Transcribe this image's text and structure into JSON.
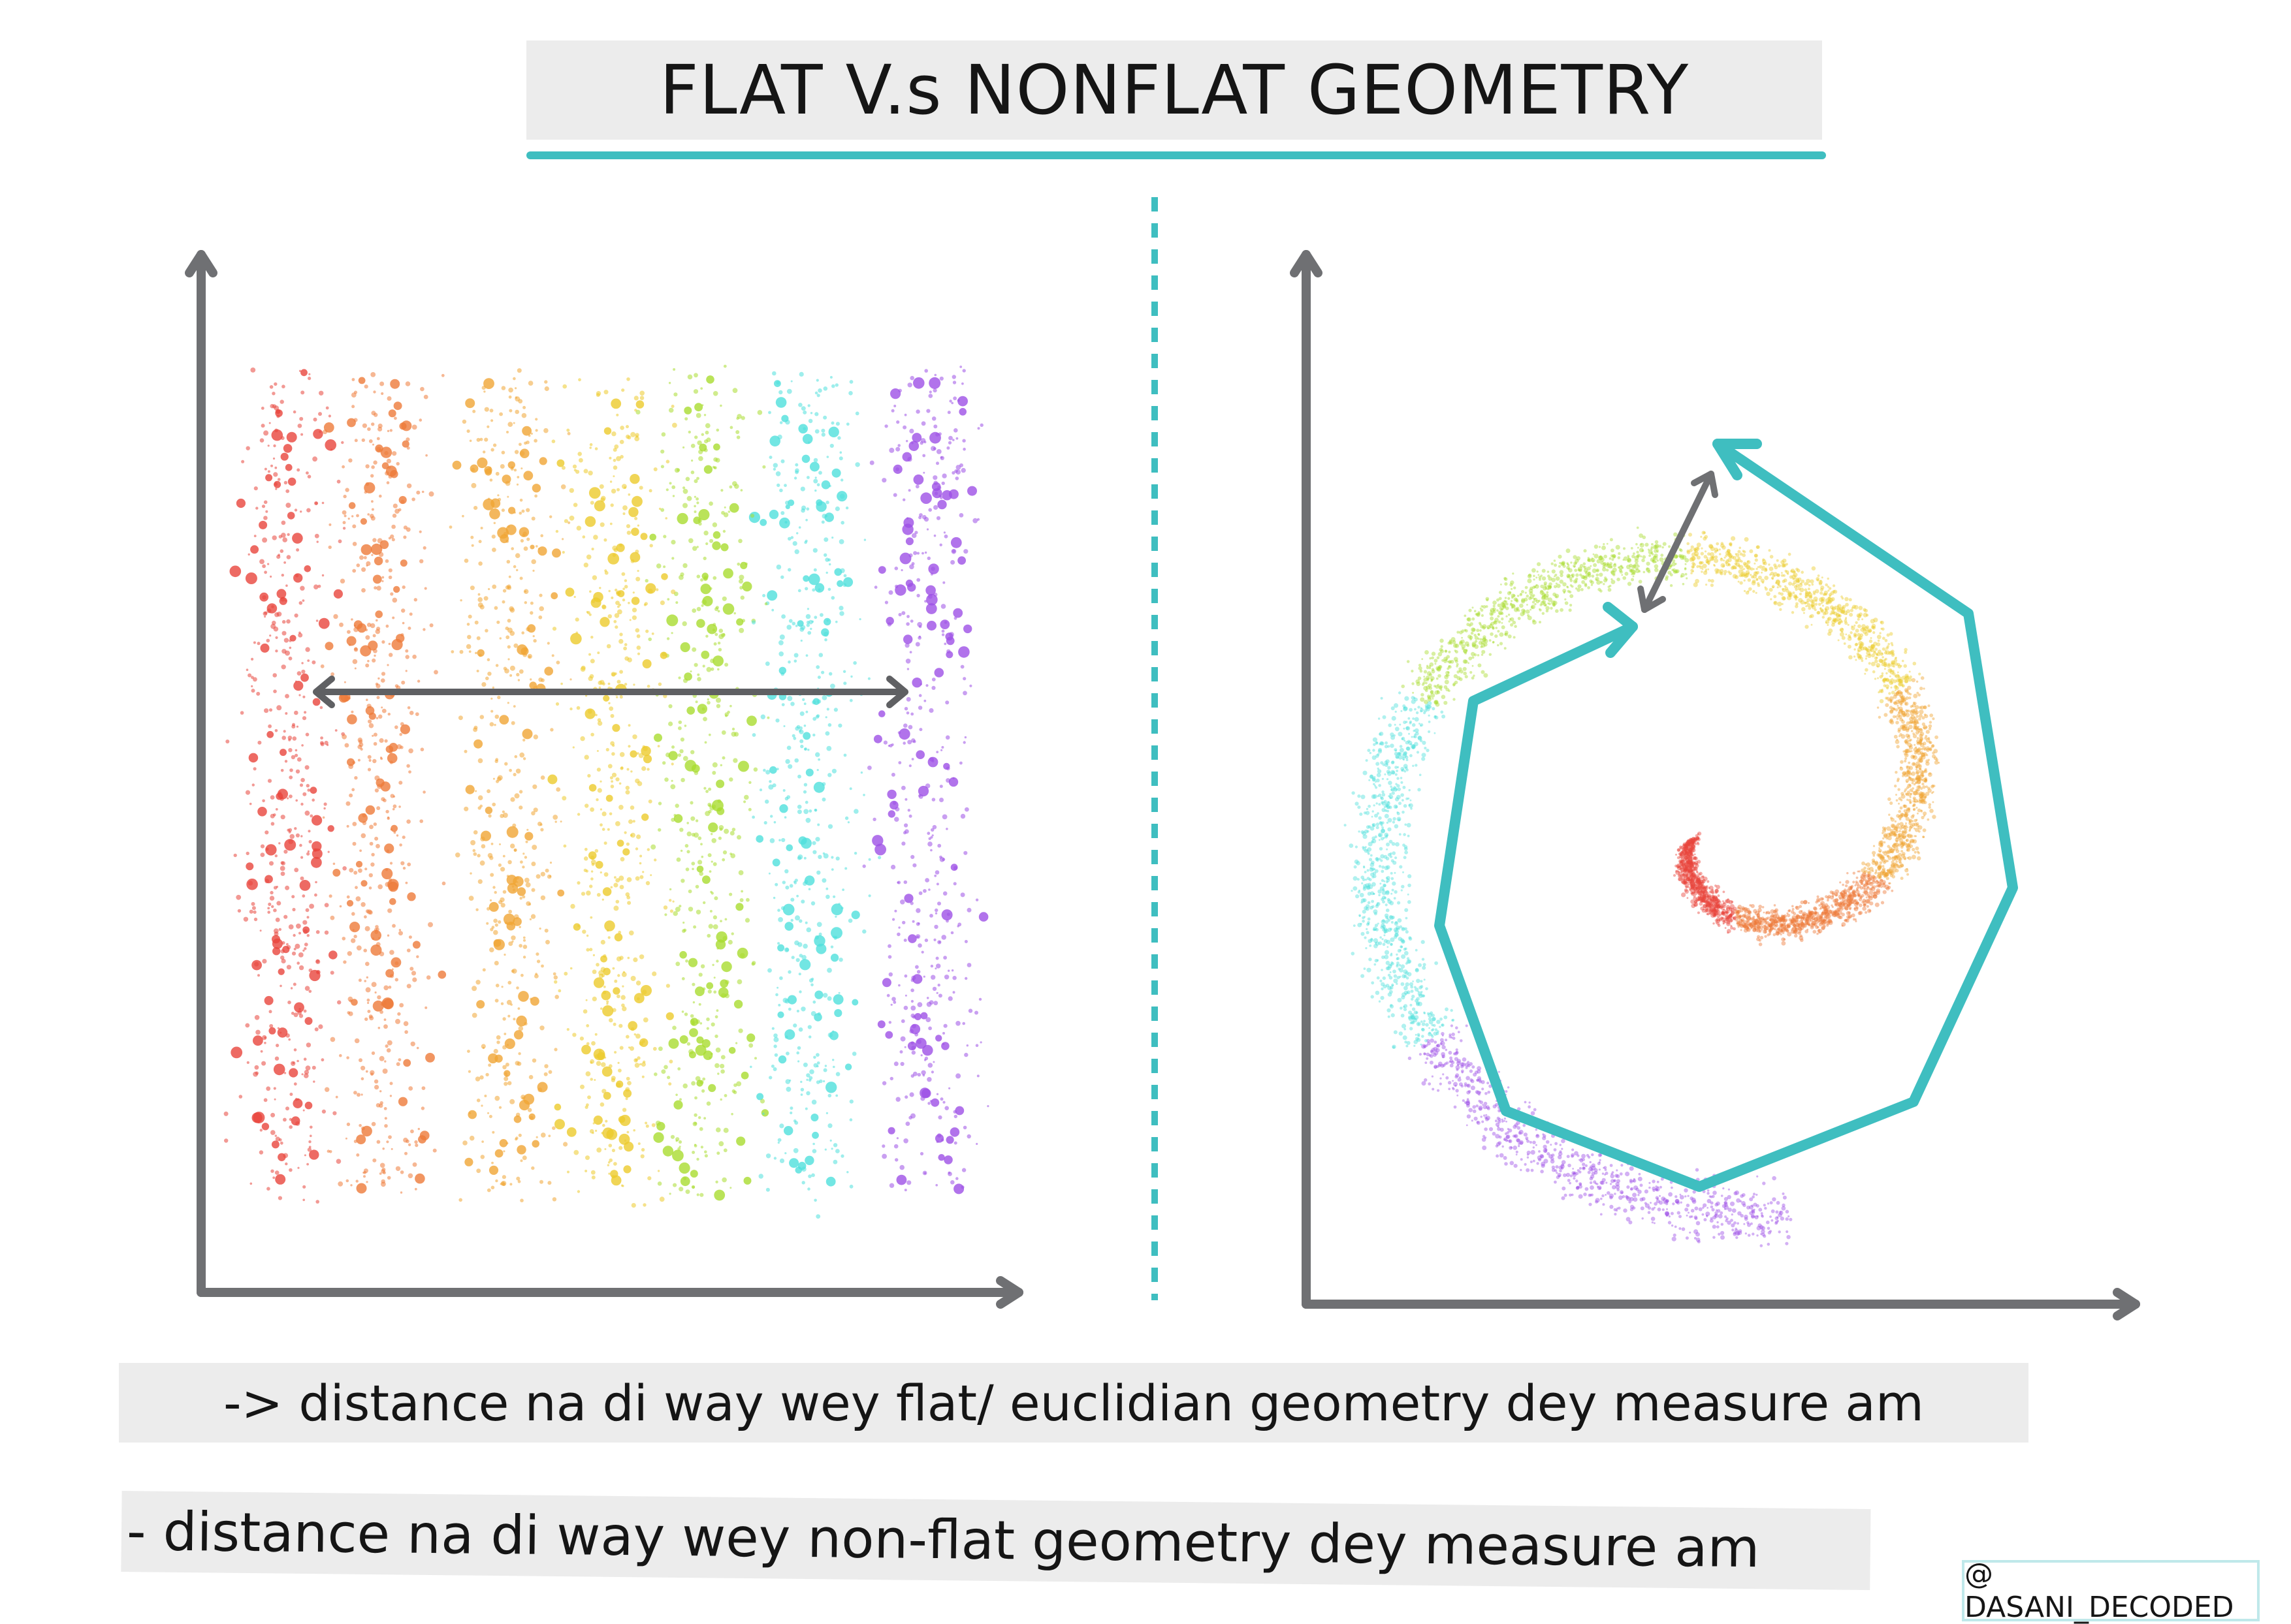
{
  "title": "FLAT V.s NONFLAT GEOMETRY",
  "captions": {
    "flat": "-> distance na di way wey flat/ euclidian geometry dey measure am",
    "nonflat": "- distance na di way wey non-flat geometry dey measure am"
  },
  "credit": "@ DASANI_DECODED",
  "colors": {
    "axis": "#6f7073",
    "accent": "#3fbec0",
    "palette": [
      "#e8453c",
      "#ee7b3a",
      "#f0a534",
      "#eccb2c",
      "#a9dc2f",
      "#4fe0dc",
      "#9d50e6"
    ]
  }
}
